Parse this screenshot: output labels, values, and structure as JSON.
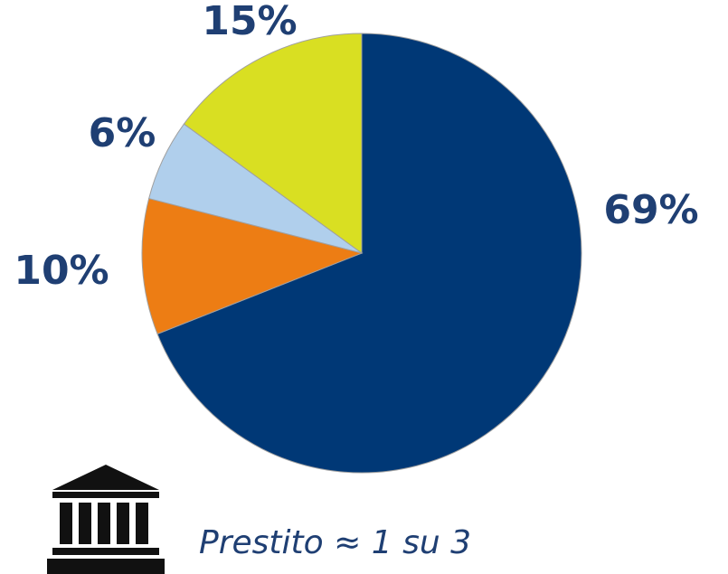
{
  "chart_data": {
    "type": "pie",
    "values": [
      69,
      10,
      6,
      15
    ],
    "value_labels": [
      "69%",
      "10%",
      "6%",
      "15%"
    ],
    "colors": [
      "#003876",
      "#ed7d14",
      "#b0cfec",
      "#d9df22"
    ],
    "annotation": "Prestito ≈ 1 su 3"
  }
}
